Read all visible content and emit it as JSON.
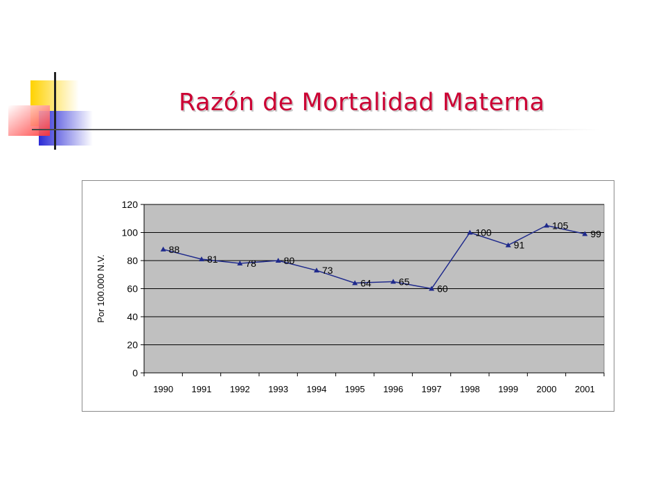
{
  "title": "Razón de Mortalidad Materna",
  "chart_data": {
    "type": "line",
    "categories": [
      "1990",
      "1991",
      "1992",
      "1993",
      "1994",
      "1995",
      "1996",
      "1997",
      "1998",
      "1999",
      "2000",
      "2001"
    ],
    "series": [
      {
        "values": [
          88,
          81,
          78,
          80,
          73,
          64,
          65,
          60,
          100,
          91,
          105,
          99
        ]
      }
    ],
    "data_labels": [
      "88",
      "81",
      "78",
      "80",
      "73",
      "64",
      "65",
      "60",
      "100",
      "91",
      "105",
      "99"
    ],
    "ylabel": "Por 100.000 N.V.",
    "ylim": [
      0,
      120
    ],
    "yticks": [
      0,
      20,
      40,
      60,
      80,
      100,
      120
    ],
    "ytick_labels": [
      "0",
      "20",
      "40",
      "60",
      "80",
      "100",
      "120"
    ],
    "grid": true,
    "plot_background": "#c0c0c0",
    "line_color": "#1f2a8c",
    "marker": "triangle"
  },
  "colors": {
    "title": "#cc0033",
    "deco_yellow": "#ffd200",
    "deco_blue": "#2b2bd6",
    "deco_red": "#ff4040"
  }
}
